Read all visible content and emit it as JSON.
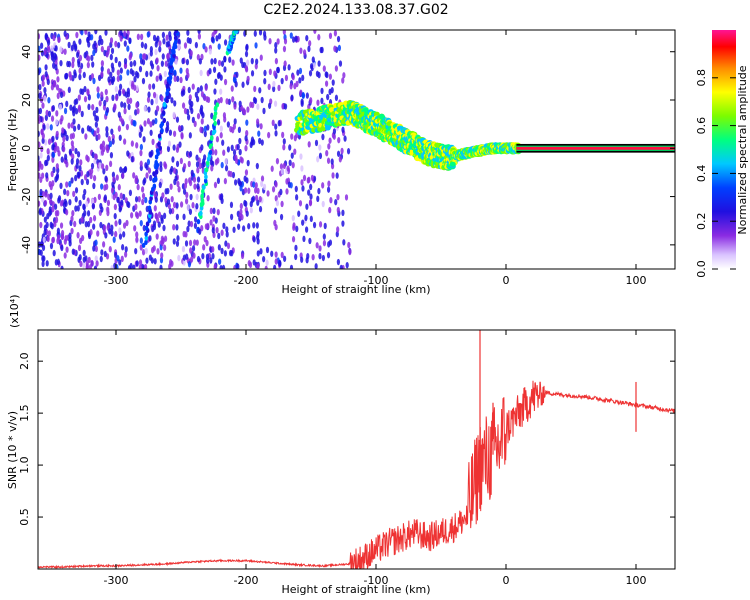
{
  "page_title": "C2E2.2024.133.08.37.G02",
  "chart_data": [
    {
      "type": "heatmap",
      "xlabel": "Height of straight line (km)",
      "ylabel": "Frequency (Hz)",
      "xlim": [
        -360,
        130
      ],
      "ylim": [
        -50,
        49
      ],
      "xticks": [
        -300,
        -200,
        -100,
        0,
        100
      ],
      "yticks": [
        -40,
        -20,
        0,
        20,
        40
      ],
      "colorbar": {
        "label": "Normalized spectral amplitude",
        "range": [
          0.0,
          1.0
        ],
        "ticks": [
          0.0,
          0.2,
          0.4,
          0.6,
          0.8
        ],
        "colors": [
          "#e8d8ff",
          "#8a2be2",
          "#3a1ad6",
          "#0000ff",
          "#00c8ff",
          "#00ff66",
          "#7cfc00",
          "#ffff00",
          "#ff8c00",
          "#ff0000",
          "#ff1493"
        ]
      },
      "features": [
        {
          "kind": "steep-trace",
          "points": [
            [
              -278,
              -40
            ],
            [
              -262,
              18
            ],
            [
              -253,
              49
            ]
          ],
          "amplitude": 0.3
        },
        {
          "kind": "steep-trace",
          "points": [
            [
              -236,
              -30
            ],
            [
              -222,
              18
            ]
          ],
          "amplitude": 0.45
        },
        {
          "kind": "steep-trace",
          "points": [
            [
              -214,
              40
            ],
            [
              -208,
              49
            ]
          ],
          "amplitude": 0.4
        },
        {
          "kind": "signal-band",
          "points": [
            [
              -160,
              10
            ],
            [
              -120,
              15
            ],
            [
              -100,
              10
            ],
            [
              -80,
              4
            ],
            [
              -60,
              -2
            ],
            [
              -45,
              -4
            ],
            [
              -30,
              -2
            ],
            [
              -10,
              0
            ],
            [
              10,
              0
            ],
            [
              130,
              0
            ]
          ],
          "amplitude": 0.6
        }
      ],
      "grid": false
    },
    {
      "type": "line",
      "xlabel": "Height of straight line (km)",
      "ylabel": "SNR (10 * v/v)",
      "y_multiplier": "(x10⁴)",
      "xlim": [
        -360,
        130
      ],
      "ylim": [
        0,
        2.3
      ],
      "xticks": [
        -300,
        -200,
        -100,
        0,
        100
      ],
      "yticks": [
        0.5,
        1.0,
        1.5,
        2.0
      ],
      "series": [
        {
          "color": "#ee3333",
          "x": [
            -360,
            -340,
            -320,
            -300,
            -280,
            -260,
            -240,
            -220,
            -200,
            -180,
            -160,
            -140,
            -120,
            -110,
            -100,
            -90,
            -80,
            -70,
            -60,
            -50,
            -40,
            -30,
            -25,
            -20,
            -15,
            -10,
            -5,
            0,
            10,
            20,
            30,
            40,
            60,
            80,
            100,
            120,
            130
          ],
          "y": [
            0.02,
            0.02,
            0.03,
            0.03,
            0.04,
            0.05,
            0.07,
            0.08,
            0.08,
            0.06,
            0.04,
            0.03,
            0.05,
            0.1,
            0.18,
            0.25,
            0.3,
            0.35,
            0.3,
            0.35,
            0.4,
            0.5,
            0.75,
            1.0,
            1.05,
            1.1,
            1.2,
            1.35,
            1.5,
            1.65,
            1.7,
            1.68,
            1.66,
            1.62,
            1.58,
            1.54,
            1.52
          ],
          "spikes": [
            [
              -20,
              2.3
            ],
            [
              -10,
              1.6
            ],
            [
              100,
              1.8
            ],
            [
              100,
              1.32
            ]
          ]
        }
      ],
      "grid": false
    }
  ]
}
